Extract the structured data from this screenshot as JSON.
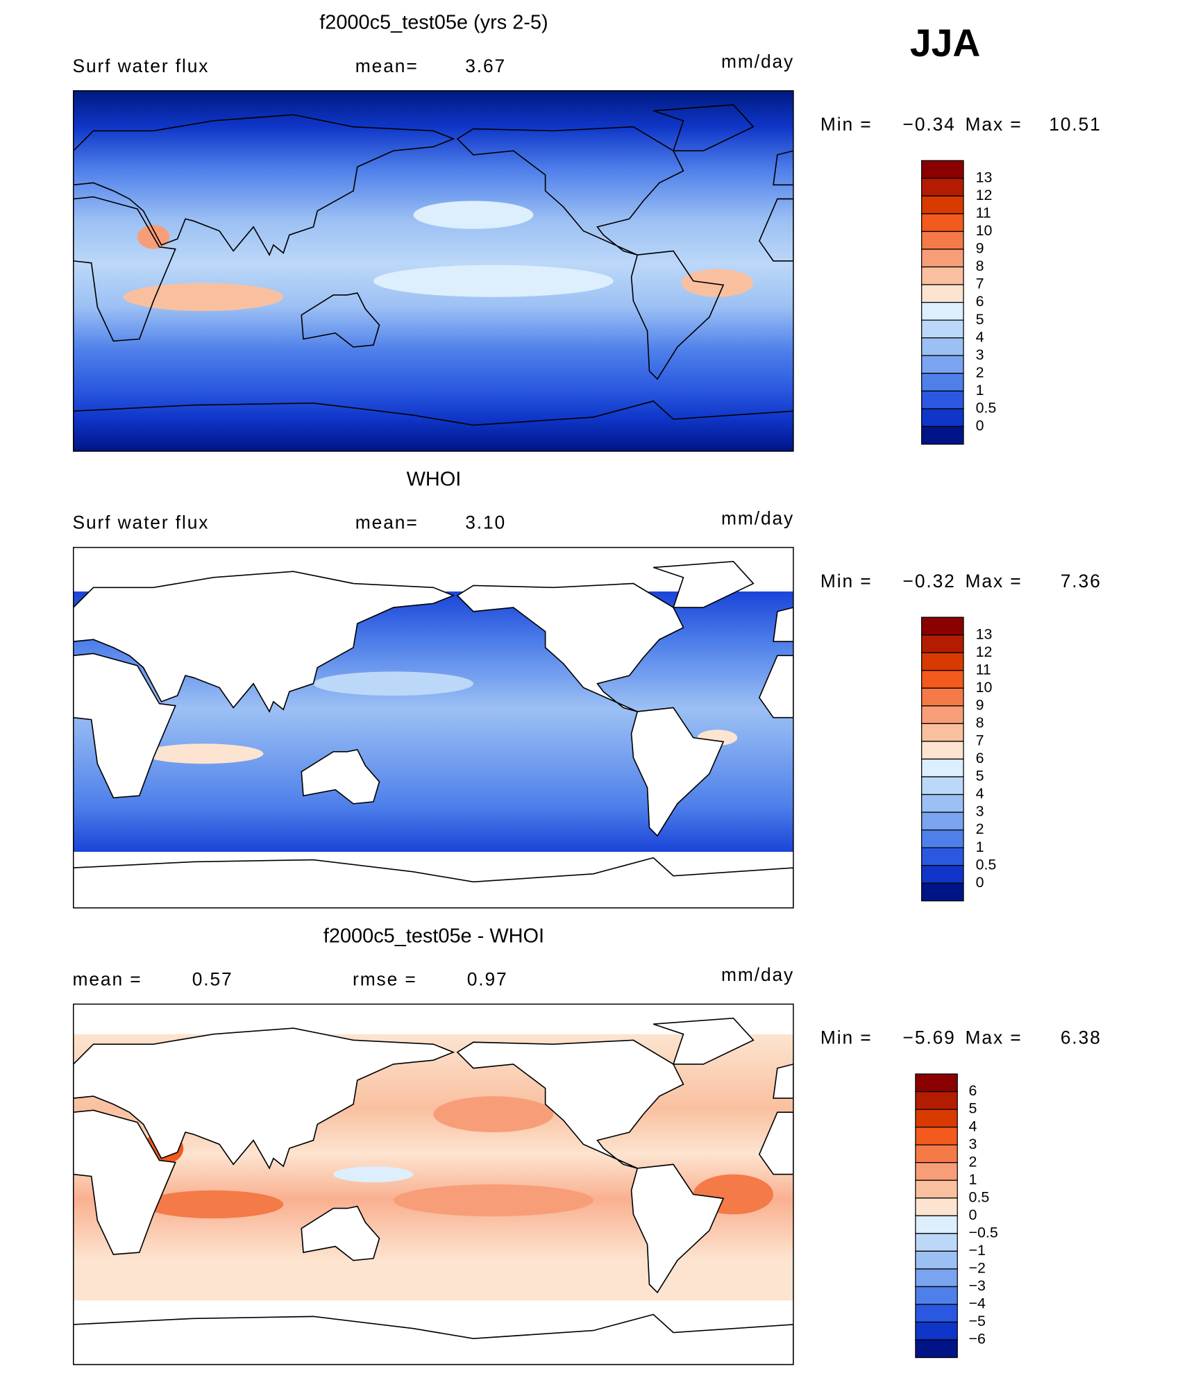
{
  "header": {
    "season": "JJA"
  },
  "panels": [
    {
      "title": "f2000c5_test05e (yrs 2-5)",
      "variable": "Surf water flux",
      "mean_label": "mean=",
      "mean": "3.67",
      "units": "mm/day",
      "min_label": "Min =",
      "min": "−0.34",
      "max_label": "Max =",
      "max": "10.51",
      "colorbar": {
        "labels": [
          "13",
          "12",
          "11",
          "10",
          "9",
          "8",
          "7",
          "6",
          "5",
          "4",
          "3",
          "2",
          "1",
          "0.5",
          "0"
        ],
        "colors": [
          "#8b0000",
          "#b31c00",
          "#d93a00",
          "#f25a1e",
          "#f47a48",
          "#f79e78",
          "#f9c0a0",
          "#fde4d0",
          "#ddeefc",
          "#bcd8f8",
          "#9cc0f4",
          "#7aa4f0",
          "#4f80ea",
          "#2a58e0",
          "#0f36c8",
          "#001488"
        ]
      }
    },
    {
      "title": "WHOI",
      "variable": "Surf water flux",
      "mean_label": "mean=",
      "mean": "3.10",
      "units": "mm/day",
      "min_label": "Min =",
      "min": "−0.32",
      "max_label": "Max =",
      "max": "7.36",
      "colorbar": {
        "labels": [
          "13",
          "12",
          "11",
          "10",
          "9",
          "8",
          "7",
          "6",
          "5",
          "4",
          "3",
          "2",
          "1",
          "0.5",
          "0"
        ],
        "colors": [
          "#8b0000",
          "#b31c00",
          "#d93a00",
          "#f25a1e",
          "#f47a48",
          "#f79e78",
          "#f9c0a0",
          "#fde4d0",
          "#ddeefc",
          "#bcd8f8",
          "#9cc0f4",
          "#7aa4f0",
          "#4f80ea",
          "#2a58e0",
          "#0f36c8",
          "#001488"
        ]
      }
    },
    {
      "title": "f2000c5_test05e - WHOI",
      "mean_label": "mean =",
      "mean": "0.57",
      "rmse_label": "rmse =",
      "rmse": "0.97",
      "units": "mm/day",
      "min_label": "Min =",
      "min": "−5.69",
      "max_label": "Max =",
      "max": "6.38",
      "colorbar": {
        "labels": [
          "6",
          "5",
          "4",
          "3",
          "2",
          "1",
          "0.5",
          "0",
          "−0.5",
          "−1",
          "−2",
          "−3",
          "−4",
          "−5",
          "−6"
        ],
        "colors": [
          "#8b0000",
          "#b31c00",
          "#d93a00",
          "#f25a1e",
          "#f47a48",
          "#f79e78",
          "#f9c0a0",
          "#fde4d0",
          "#ddeefc",
          "#bcd8f8",
          "#9cc0f4",
          "#7aa4f0",
          "#4f80ea",
          "#2a58e0",
          "#0f36c8",
          "#001488"
        ]
      }
    }
  ]
}
